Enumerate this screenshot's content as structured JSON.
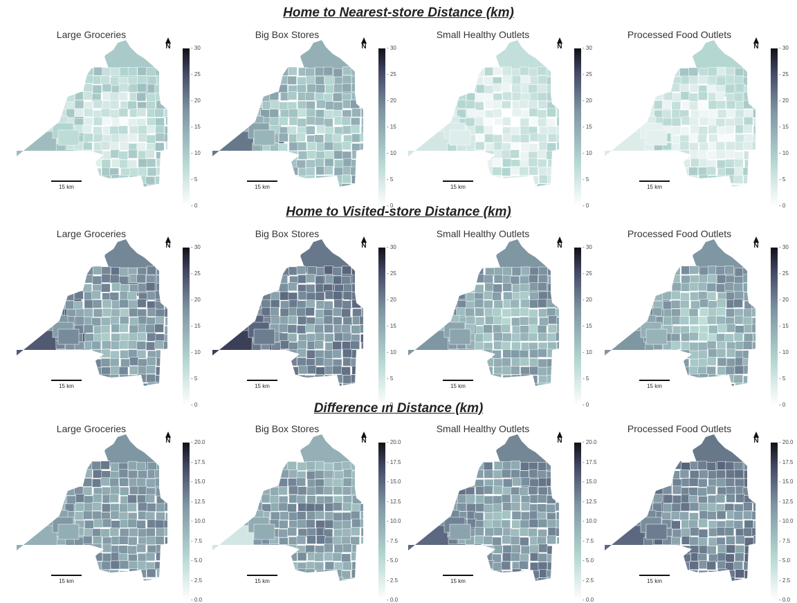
{
  "sections": [
    {
      "title": "Home to Nearest-store Distance (km)",
      "colorbar_ticks": [
        "30",
        "25",
        "20",
        "15",
        "10",
        "5",
        "0"
      ],
      "colorbar_range": [
        0,
        30
      ],
      "panels": [
        {
          "title": "Large Groceries",
          "scale_label": "15 km",
          "north_label": "N",
          "level_sw": 0.35,
          "level_core": 0.1,
          "level_ne": 0.3
        },
        {
          "title": "Big Box Stores",
          "scale_label": "15 km",
          "north_label": "N",
          "level_sw": 0.6,
          "level_core": 0.25,
          "level_ne": 0.4
        },
        {
          "title": "Small Healthy Outlets",
          "scale_label": "15 km",
          "north_label": "N",
          "level_sw": 0.15,
          "level_core": 0.07,
          "level_ne": 0.2
        },
        {
          "title": "Processed Food Outlets",
          "scale_label": "15 km",
          "north_label": "N",
          "level_sw": 0.12,
          "level_core": 0.05,
          "level_ne": 0.25
        }
      ]
    },
    {
      "title": "Home to Visited-store Distance (km)",
      "colorbar_ticks": [
        "30",
        "25",
        "20",
        "15",
        "10",
        "5",
        "0"
      ],
      "colorbar_range": [
        0,
        30
      ],
      "panels": [
        {
          "title": "Large Groceries",
          "scale_label": "15 km",
          "north_label": "N",
          "level_sw": 0.7,
          "level_core": 0.35,
          "level_ne": 0.55
        },
        {
          "title": "Big Box Stores",
          "scale_label": "15 km",
          "north_label": "N",
          "level_sw": 0.8,
          "level_core": 0.45,
          "level_ne": 0.6
        },
        {
          "title": "Small Healthy Outlets",
          "scale_label": "15 km",
          "north_label": "N",
          "level_sw": 0.5,
          "level_core": 0.3,
          "level_ne": 0.5
        },
        {
          "title": "Processed Food Outlets",
          "scale_label": "15 km",
          "north_label": "N",
          "level_sw": 0.5,
          "level_core": 0.3,
          "level_ne": 0.5
        }
      ]
    },
    {
      "title": "Difference in Distance (km)",
      "colorbar_ticks": [
        "20.0",
        "17.5",
        "15.0",
        "12.5",
        "10.0",
        "7.5",
        "5.0",
        "2.5",
        "0.0"
      ],
      "colorbar_range": [
        0,
        20
      ],
      "panels": [
        {
          "title": "Large Groceries",
          "scale_label": "15 km",
          "north_label": "N",
          "level_sw": 0.4,
          "level_core": 0.45,
          "level_ne": 0.5
        },
        {
          "title": "Big Box Stores",
          "scale_label": "15 km",
          "north_label": "N",
          "level_sw": 0.15,
          "level_core": 0.55,
          "level_ne": 0.4
        },
        {
          "title": "Small Healthy Outlets",
          "scale_label": "15 km",
          "north_label": "N",
          "level_sw": 0.65,
          "level_core": 0.4,
          "level_ne": 0.55
        },
        {
          "title": "Processed Food Outlets",
          "scale_label": "15 km",
          "north_label": "N",
          "level_sw": 0.65,
          "level_core": 0.45,
          "level_ne": 0.6
        }
      ]
    }
  ],
  "colors": {
    "ramp": [
      "#ffffff",
      "#b4d7d2",
      "#7f96a3",
      "#454a67",
      "#111117"
    ]
  }
}
